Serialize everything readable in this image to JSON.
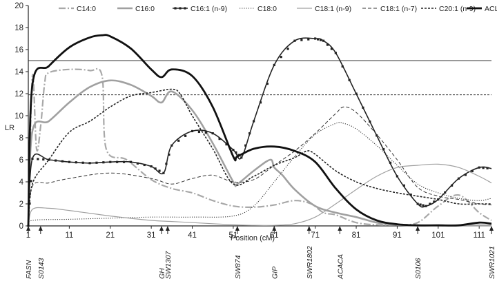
{
  "chart_data": {
    "type": "line",
    "xlabel": "Position (cM)",
    "ylabel": "LR",
    "xlim": [
      1,
      114
    ],
    "ylim": [
      0,
      20
    ],
    "xticks": [
      1,
      11,
      21,
      31,
      41,
      51,
      61,
      71,
      81,
      91,
      101,
      111
    ],
    "yticks": [
      0,
      2,
      4,
      6,
      8,
      10,
      12,
      14,
      16,
      18,
      20
    ],
    "legend_position": "top",
    "thresholds": [
      {
        "value": 15,
        "style": "solid"
      },
      {
        "value": 11.9,
        "style": "dashed"
      }
    ],
    "markers": [
      {
        "name": "FASN",
        "x": 1
      },
      {
        "name": "S0143",
        "x": 4
      },
      {
        "name": "GH",
        "x": 33.5
      },
      {
        "name": "SW1307",
        "x": 35
      },
      {
        "name": "SW874",
        "x": 52
      },
      {
        "name": "GIP",
        "x": 61
      },
      {
        "name": "SWR1802",
        "x": 69.5
      },
      {
        "name": "ACACA",
        "x": 77
      },
      {
        "name": "S0106",
        "x": 96
      },
      {
        "name": "SWR1021",
        "x": 114
      }
    ],
    "series": [
      {
        "name": "C14:0",
        "style": "dashdot",
        "color": "#a8a8a8",
        "x": [
          1,
          2,
          3,
          4,
          5,
          6,
          11,
          16,
          19,
          20,
          25,
          31,
          36,
          41,
          46,
          51,
          56,
          61,
          66,
          70,
          73,
          76,
          81,
          86,
          91,
          96,
          101,
          106,
          111,
          114
        ],
        "values": [
          0,
          13.6,
          7.0,
          9.0,
          13.0,
          13.9,
          14.2,
          14.1,
          13.6,
          7.0,
          6.0,
          4.2,
          3.4,
          3.0,
          2.3,
          1.8,
          1.7,
          1.9,
          2.3,
          2.0,
          1.2,
          1.0,
          0.3,
          0.1,
          0.1,
          0.3,
          1.8,
          2.8,
          1.2,
          0.5
        ]
      },
      {
        "name": "C16:0",
        "style": "solid",
        "color": "#a0a0a0",
        "x": [
          1,
          2,
          6,
          11,
          16,
          21,
          26,
          31,
          33.5,
          36,
          41,
          46,
          51,
          52,
          56,
          60,
          61,
          63,
          66,
          71,
          76,
          81,
          86,
          91,
          96,
          101,
          106,
          111,
          114
        ],
        "values": [
          0,
          8.6,
          9.5,
          11.2,
          12.6,
          13.2,
          12.8,
          11.8,
          11.2,
          12.2,
          10.5,
          7.5,
          4.0,
          3.8,
          5.0,
          6.0,
          5.3,
          4.6,
          3.3,
          1.8,
          1.2,
          0.8,
          0.3,
          0.1,
          0.05,
          0.05,
          0.05,
          0.05,
          0.05
        ]
      },
      {
        "name": "C16:1 (n-9)",
        "style": "solid-squares",
        "color": "#222222",
        "x": [
          1,
          2,
          6,
          11,
          16,
          21,
          26,
          31,
          34,
          36,
          41,
          46,
          51,
          53,
          56,
          61,
          66,
          71,
          73,
          76,
          81,
          86,
          91,
          96,
          98,
          101,
          106,
          111,
          114
        ],
        "values": [
          0,
          6.1,
          6.0,
          5.8,
          5.7,
          5.8,
          5.8,
          5.4,
          4.8,
          7.3,
          8.6,
          8.4,
          6.9,
          6.2,
          9.5,
          14.6,
          16.8,
          17.0,
          16.8,
          15.7,
          12.0,
          8.2,
          4.5,
          2.0,
          1.8,
          2.4,
          4.3,
          5.3,
          5.2
        ]
      },
      {
        "name": "C18:0",
        "style": "dotted",
        "color": "#333333",
        "x": [
          1,
          2,
          11,
          21,
          31,
          41,
          51,
          56,
          61,
          66,
          71,
          76,
          78,
          81,
          86,
          91,
          96,
          101,
          106,
          111,
          114
        ],
        "values": [
          0,
          0.5,
          0.6,
          0.7,
          0.8,
          0.8,
          0.9,
          1.8,
          4.0,
          6.3,
          8.3,
          9.3,
          9.3,
          8.8,
          7.3,
          5.5,
          3.8,
          3.0,
          2.5,
          2.3,
          2.5
        ]
      },
      {
        "name": "C18:1 (n-9)",
        "style": "solid-thin",
        "color": "#a0a0a0",
        "x": [
          1,
          2,
          6,
          11,
          21,
          31,
          36,
          41,
          51,
          56,
          61,
          66,
          71,
          76,
          81,
          86,
          91,
          96,
          101,
          106,
          111,
          114
        ],
        "values": [
          0,
          1.5,
          1.6,
          1.4,
          0.9,
          0.5,
          0.4,
          0.3,
          0.1,
          0.05,
          0.05,
          0.2,
          0.8,
          2.0,
          3.3,
          4.5,
          5.3,
          5.5,
          5.6,
          5.3,
          4.5,
          3.9
        ]
      },
      {
        "name": "C18:1 (n-7)",
        "style": "dashed",
        "color": "#333333",
        "x": [
          1,
          2,
          6,
          11,
          21,
          31,
          36,
          41,
          46,
          51,
          56,
          61,
          66,
          71,
          76,
          78,
          81,
          86,
          91,
          96,
          101,
          106,
          111,
          114
        ],
        "values": [
          0,
          3.6,
          3.9,
          4.3,
          4.8,
          4.3,
          3.8,
          4.3,
          4.6,
          4.0,
          4.2,
          5.5,
          6.8,
          8.4,
          10.2,
          10.8,
          10.3,
          8.3,
          6.0,
          3.5,
          2.7,
          2.4,
          2.0,
          1.9
        ]
      },
      {
        "name": "C20:1 (n-9)",
        "style": "short-dashed",
        "color": "#222222",
        "x": [
          1,
          2,
          6,
          11,
          16,
          21,
          26,
          31,
          36,
          38,
          41,
          46,
          51,
          56,
          61,
          66,
          69,
          71,
          76,
          81,
          86,
          91,
          96,
          101,
          106,
          111,
          114
        ],
        "values": [
          0,
          3.8,
          6.0,
          8.5,
          9.5,
          10.8,
          11.8,
          12.1,
          12.4,
          12.0,
          10.0,
          7.0,
          3.8,
          4.5,
          5.5,
          6.2,
          6.8,
          6.5,
          5.0,
          4.0,
          3.4,
          3.0,
          2.7,
          2.4,
          2.0,
          2.0,
          2.0
        ]
      },
      {
        "name": "ACL",
        "style": "solid-thick",
        "color": "#111111",
        "x": [
          1,
          2,
          6,
          11,
          16,
          19,
          21,
          26,
          31,
          33.5,
          36,
          41,
          46,
          51,
          52,
          56,
          61,
          66,
          71,
          76,
          81,
          86,
          91,
          96,
          101,
          106,
          111,
          114
        ],
        "values": [
          0,
          12.8,
          14.5,
          16.2,
          17.1,
          17.3,
          17.2,
          16.1,
          14.2,
          13.5,
          14.2,
          13.6,
          10.8,
          6.3,
          6.3,
          7.0,
          7.2,
          6.8,
          5.8,
          3.4,
          1.5,
          0.5,
          0.15,
          0.05,
          0.05,
          0.05,
          0.3,
          0.2
        ]
      }
    ]
  }
}
